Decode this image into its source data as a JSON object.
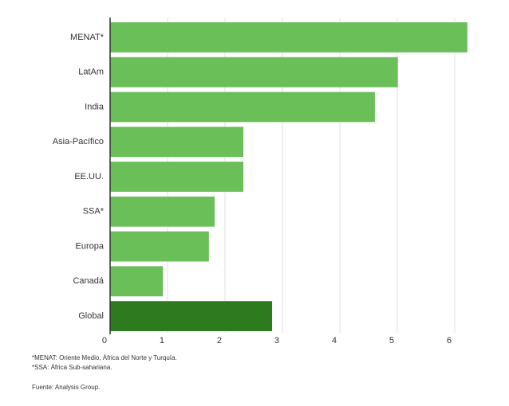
{
  "chart_data": {
    "type": "bar",
    "orientation": "horizontal",
    "categories": [
      "MENAT*",
      "LatAm",
      "India",
      "Asia-Pacífico",
      "EE.UU.",
      "SSA*",
      "Europa",
      "Canadá",
      "Global"
    ],
    "values": [
      6.22,
      5.01,
      4.61,
      2.32,
      2.32,
      1.82,
      1.72,
      0.92,
      2.82
    ],
    "colors": [
      "#6abf59",
      "#6abf59",
      "#6abf59",
      "#6abf59",
      "#6abf59",
      "#6abf59",
      "#6abf59",
      "#6abf59",
      "#2e7a1f"
    ],
    "xlim": [
      0,
      6.3
    ],
    "xticks": [
      0,
      1,
      2,
      3,
      4,
      5,
      6
    ],
    "grid": true,
    "notes": [
      "*MENAT: Oriente Medio, África del Norte y Turquía.",
      "*SSA: África Sub-sahariana."
    ],
    "source": "Fuente: Analysis Group."
  }
}
